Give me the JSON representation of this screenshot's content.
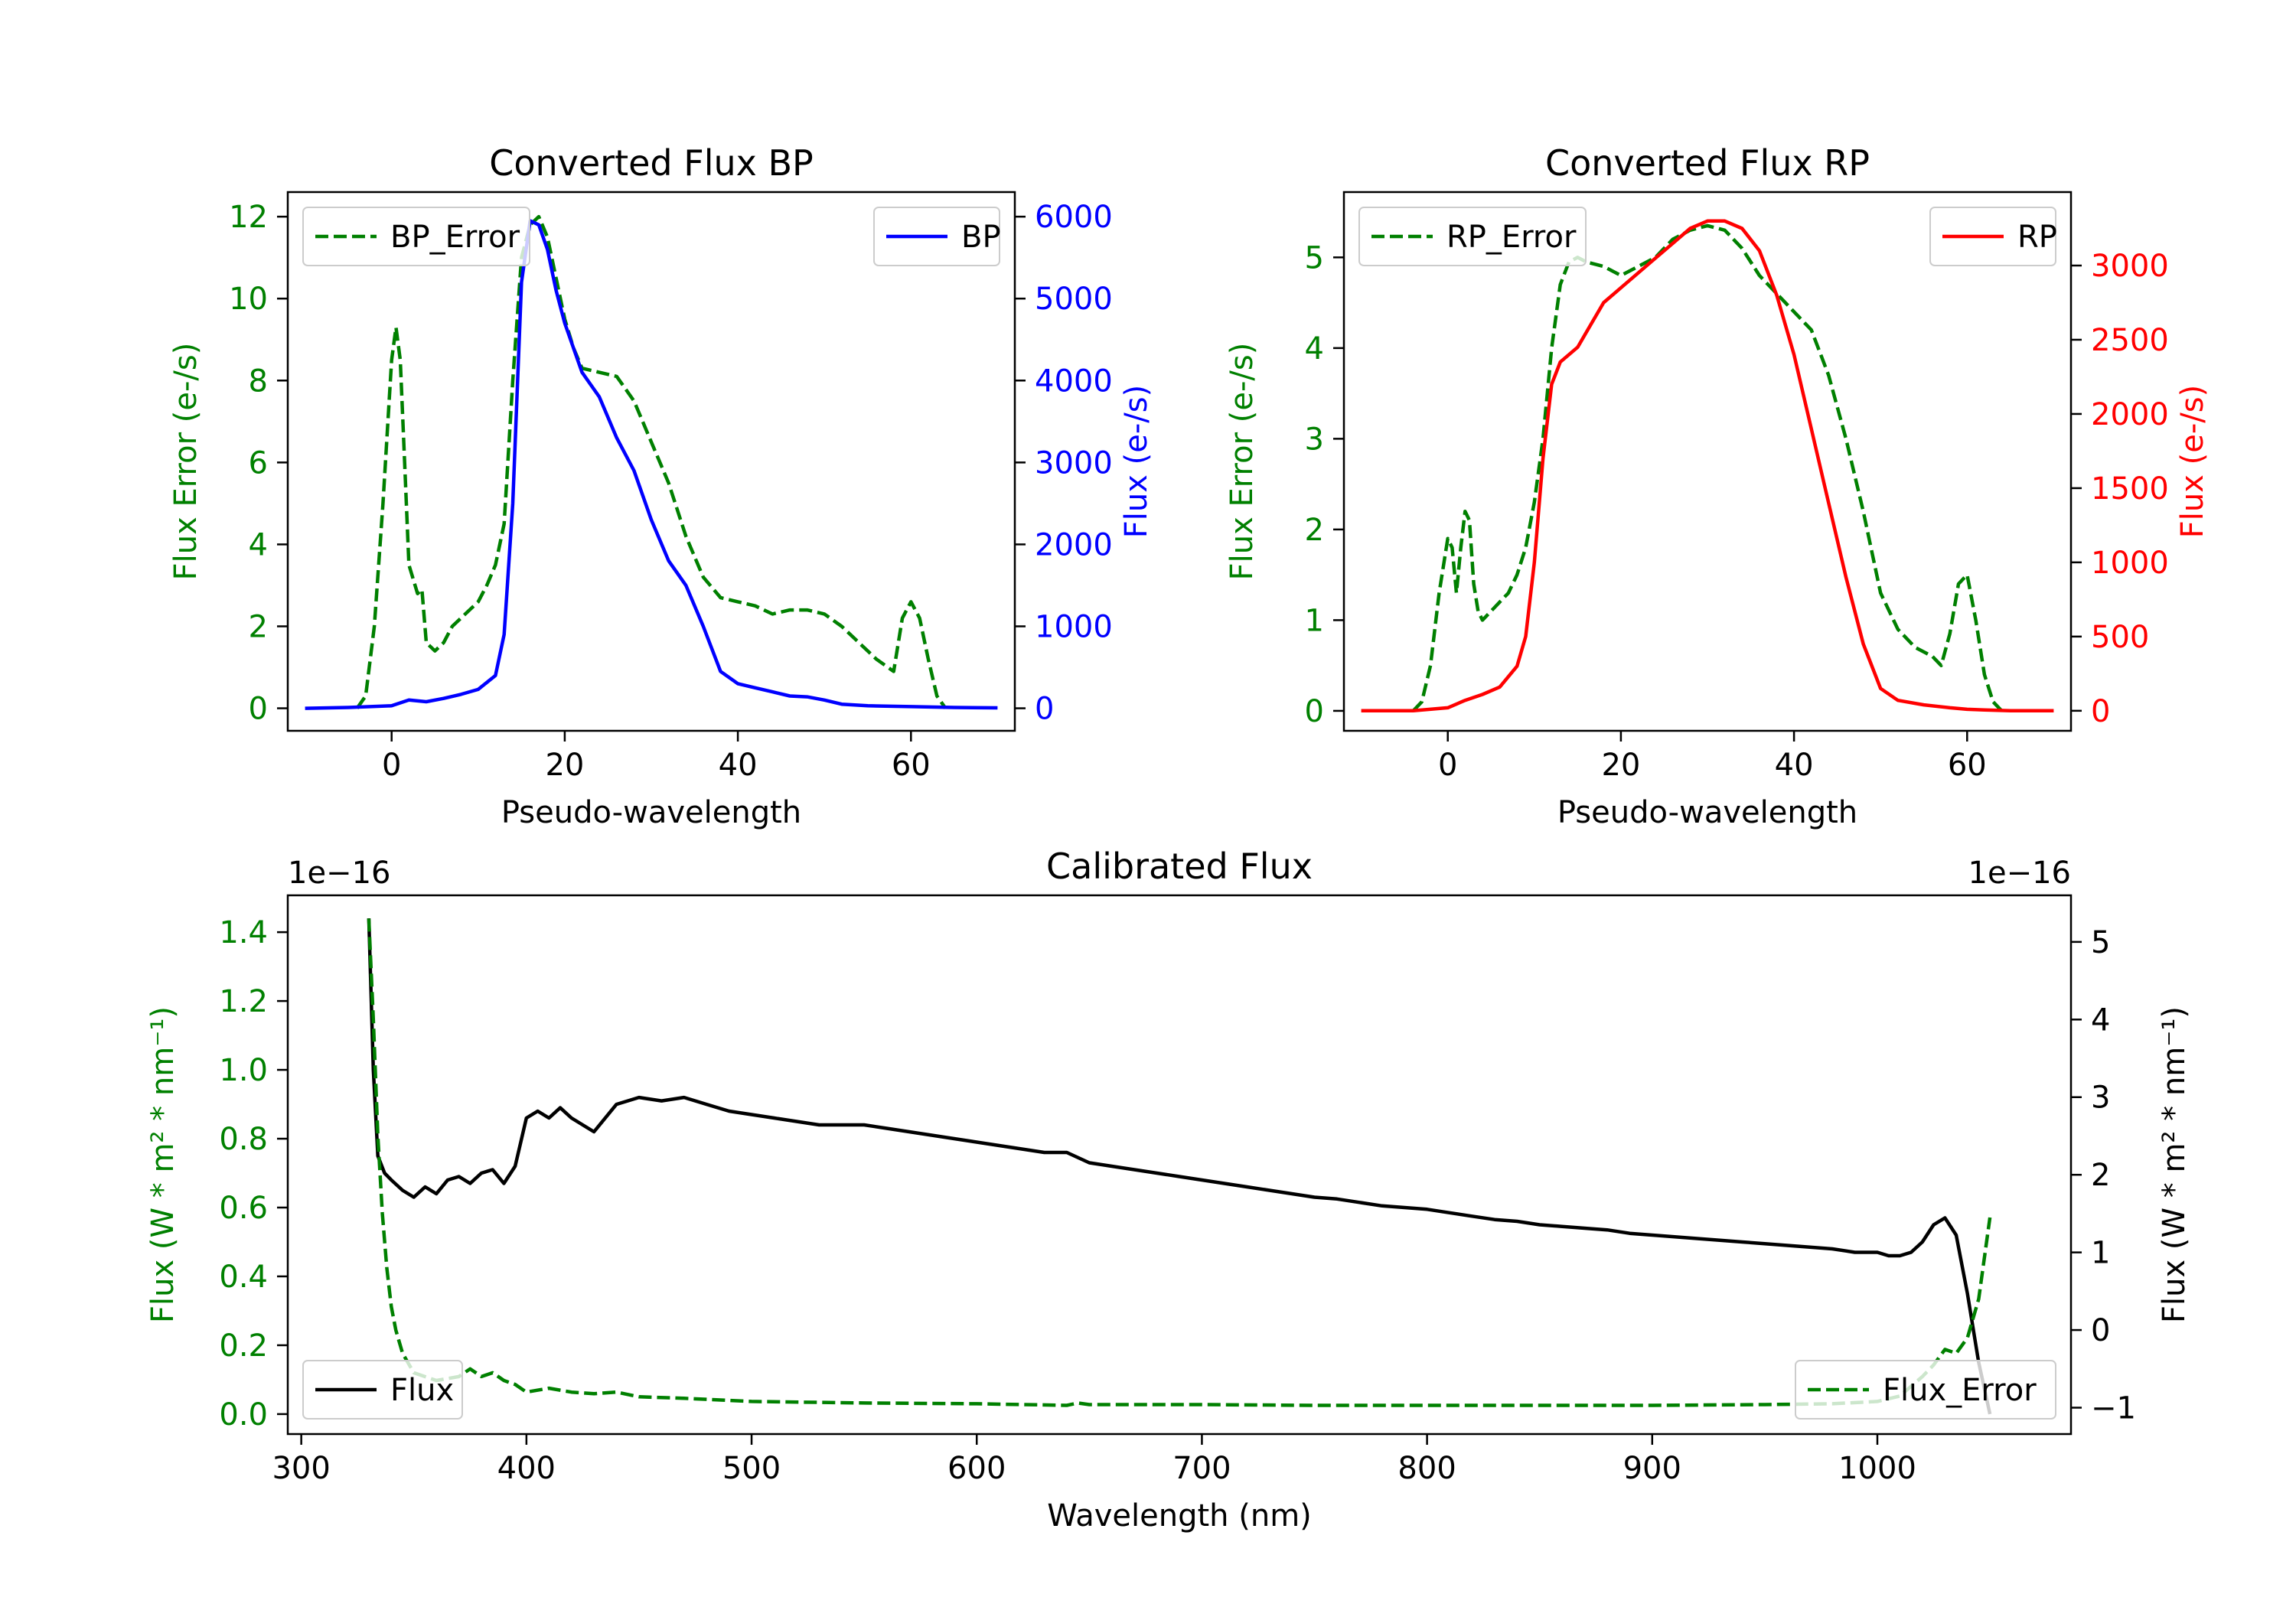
{
  "colors": {
    "error": "#008000",
    "bp": "#0000ff",
    "rp": "#ff0000",
    "flux": "#000000",
    "axis": "#000000"
  },
  "chart_data": [
    {
      "id": "bp",
      "type": "line",
      "title": "Converted Flux BP",
      "xlabel": "Pseudo-wavelength",
      "ylabel_left": "Flux Error (e-/s)",
      "ylabel_right": "Flux (e-/s)",
      "xlim": [
        -12,
        72
      ],
      "ylim_left": [
        -0.55,
        12.6
      ],
      "ylim_right": [
        -275,
        6300
      ],
      "xticks": [
        0,
        20,
        40,
        60
      ],
      "yticks_left": [
        0,
        2,
        4,
        6,
        8,
        10,
        12
      ],
      "yticks_right": [
        0,
        1000,
        2000,
        3000,
        4000,
        5000,
        6000
      ],
      "legend_left": {
        "label": "BP_Error",
        "placement": "upper left"
      },
      "legend_right": {
        "label": "BP",
        "placement": "upper right"
      },
      "series": [
        {
          "name": "BP_Error",
          "axis": "left",
          "style": "dashed",
          "color_key": "error",
          "x": [
            -4,
            -3,
            -2,
            -1,
            0,
            0.5,
            1,
            1.5,
            2,
            3,
            3.5,
            4,
            5,
            6,
            7,
            8,
            9,
            10,
            11,
            12,
            13,
            14,
            15,
            16,
            17,
            18,
            19,
            20,
            21,
            22,
            24,
            26,
            28,
            30,
            32,
            34,
            36,
            38,
            40,
            42,
            44,
            46,
            48,
            50,
            52,
            54,
            56,
            58,
            59,
            60,
            61,
            62,
            63,
            64
          ],
          "values": [
            0,
            0.3,
            2,
            5,
            8.5,
            9.3,
            8.5,
            6,
            3.5,
            2.8,
            2.9,
            1.6,
            1.4,
            1.6,
            2,
            2.2,
            2.4,
            2.6,
            3,
            3.5,
            4.5,
            8,
            11,
            11.8,
            12,
            11.5,
            10.5,
            9.5,
            8.8,
            8.3,
            8.2,
            8.1,
            7.5,
            6.5,
            5.5,
            4.2,
            3.2,
            2.7,
            2.6,
            2.5,
            2.3,
            2.4,
            2.4,
            2.3,
            2,
            1.6,
            1.2,
            0.9,
            2.2,
            2.6,
            2.2,
            1.2,
            0.3,
            0
          ]
        },
        {
          "name": "BP",
          "axis": "right",
          "style": "solid",
          "color_key": "bp",
          "x": [
            -10,
            -5,
            0,
            2,
            4,
            6,
            8,
            10,
            12,
            13,
            14,
            15,
            16,
            17,
            18,
            19,
            20,
            22,
            24,
            26,
            28,
            30,
            32,
            34,
            36,
            38,
            40,
            42,
            44,
            46,
            48,
            50,
            52,
            55,
            60,
            65,
            70
          ],
          "values": [
            0,
            10,
            30,
            100,
            80,
            120,
            170,
            230,
            400,
            900,
            2500,
            5200,
            5950,
            5900,
            5600,
            5100,
            4700,
            4100,
            3800,
            3300,
            2900,
            2300,
            1800,
            1500,
            1000,
            450,
            300,
            250,
            200,
            150,
            140,
            100,
            50,
            30,
            20,
            10,
            5
          ]
        }
      ]
    },
    {
      "id": "rp",
      "type": "line",
      "title": "Converted Flux RP",
      "xlabel": "Pseudo-wavelength",
      "ylabel_left": "Flux Error (e-/s)",
      "ylabel_right": "Flux (e-/s)",
      "xlim": [
        -12,
        72
      ],
      "ylim_left": [
        -0.22,
        5.72
      ],
      "ylim_right": [
        -135,
        3495
      ],
      "xticks": [
        0,
        20,
        40,
        60
      ],
      "yticks_left": [
        0,
        1,
        2,
        3,
        4,
        5
      ],
      "yticks_right": [
        0,
        500,
        1000,
        1500,
        2000,
        2500,
        3000
      ],
      "legend_left": {
        "label": "RP_Error",
        "placement": "upper left"
      },
      "legend_right": {
        "label": "RP",
        "placement": "upper right"
      },
      "series": [
        {
          "name": "RP_Error",
          "axis": "left",
          "style": "dashed",
          "color_key": "error",
          "x": [
            -4,
            -3,
            -2,
            -1,
            0,
            0.5,
            1,
            1.5,
            2,
            2.5,
            3,
            3.5,
            4,
            5,
            6,
            7,
            8,
            9,
            10,
            11,
            12,
            13,
            14,
            15,
            16,
            18,
            20,
            22,
            24,
            26,
            28,
            30,
            32,
            34,
            36,
            38,
            40,
            42,
            44,
            46,
            48,
            50,
            52,
            54,
            56,
            57,
            58,
            59,
            60,
            61,
            62,
            63,
            64
          ],
          "values": [
            0,
            0.1,
            0.5,
            1.3,
            1.9,
            1.8,
            1.3,
            1.8,
            2.2,
            2.1,
            1.4,
            1.1,
            1.0,
            1.1,
            1.2,
            1.3,
            1.5,
            1.8,
            2.3,
            3.0,
            4.0,
            4.7,
            4.95,
            5.0,
            4.95,
            4.9,
            4.8,
            4.9,
            5.0,
            5.2,
            5.3,
            5.35,
            5.3,
            5.1,
            4.8,
            4.6,
            4.4,
            4.2,
            3.7,
            3.0,
            2.2,
            1.3,
            0.9,
            0.7,
            0.6,
            0.5,
            0.85,
            1.4,
            1.5,
            1.0,
            0.4,
            0.1,
            0
          ]
        },
        {
          "name": "RP",
          "axis": "right",
          "style": "solid",
          "color_key": "rp",
          "x": [
            -10,
            -4,
            0,
            2,
            4,
            6,
            8,
            9,
            10,
            11,
            12,
            13,
            14,
            15,
            16,
            18,
            20,
            22,
            24,
            26,
            28,
            30,
            32,
            34,
            36,
            38,
            40,
            42,
            44,
            46,
            48,
            50,
            52,
            55,
            58,
            60,
            62,
            65,
            70
          ],
          "values": [
            0,
            0,
            20,
            70,
            110,
            160,
            300,
            500,
            1000,
            1700,
            2200,
            2350,
            2400,
            2450,
            2550,
            2750,
            2850,
            2950,
            3050,
            3150,
            3250,
            3300,
            3300,
            3250,
            3100,
            2800,
            2400,
            1900,
            1400,
            900,
            450,
            150,
            70,
            40,
            20,
            10,
            5,
            0,
            0
          ]
        }
      ]
    },
    {
      "id": "calibrated",
      "type": "line",
      "title": "Calibrated Flux",
      "xlabel": "Wavelength (nm)",
      "ylabel_left": "Flux (W * m² * nm⁻¹)",
      "ylabel_right": "Flux (W * m² * nm⁻¹)",
      "offset_left": "1e−16",
      "offset_right": "1e−16",
      "xlim": [
        294,
        1086
      ],
      "ylim_left": [
        -0.058,
        1.507
      ],
      "ylim_right": [
        -1.34,
        5.6
      ],
      "xticks": [
        300,
        400,
        500,
        600,
        700,
        800,
        900,
        1000
      ],
      "yticks_left": [
        "0.0",
        "0.2",
        "0.4",
        "0.6",
        "0.8",
        "1.0",
        "1.2",
        "1.4"
      ],
      "yticks_right": [
        -1,
        0,
        1,
        2,
        3,
        4,
        5
      ],
      "legend_left": {
        "label": "Flux",
        "placement": "lower left"
      },
      "legend_right": {
        "label": "Flux_Error",
        "placement": "lower right"
      },
      "series": [
        {
          "name": "Flux",
          "axis": "left",
          "style": "solid",
          "color_key": "flux",
          "x": [
            330,
            332,
            334,
            337,
            340,
            345,
            350,
            355,
            360,
            365,
            370,
            375,
            380,
            385,
            390,
            395,
            400,
            405,
            410,
            415,
            420,
            425,
            430,
            440,
            450,
            460,
            470,
            480,
            490,
            500,
            510,
            520,
            530,
            540,
            550,
            560,
            570,
            580,
            590,
            600,
            610,
            620,
            630,
            640,
            650,
            660,
            670,
            680,
            690,
            700,
            710,
            720,
            730,
            740,
            750,
            760,
            770,
            780,
            790,
            800,
            810,
            820,
            830,
            840,
            850,
            860,
            870,
            880,
            890,
            900,
            910,
            920,
            930,
            940,
            950,
            960,
            970,
            980,
            990,
            1000,
            1005,
            1010,
            1015,
            1020,
            1025,
            1030,
            1035,
            1040,
            1045,
            1050
          ],
          "values": [
            1.44,
            1.0,
            0.75,
            0.7,
            0.68,
            0.65,
            0.63,
            0.66,
            0.64,
            0.68,
            0.69,
            0.67,
            0.7,
            0.71,
            0.67,
            0.72,
            0.86,
            0.88,
            0.86,
            0.89,
            0.86,
            0.84,
            0.82,
            0.9,
            0.92,
            0.91,
            0.92,
            0.9,
            0.88,
            0.87,
            0.86,
            0.85,
            0.84,
            0.84,
            0.84,
            0.83,
            0.82,
            0.81,
            0.8,
            0.79,
            0.78,
            0.77,
            0.76,
            0.76,
            0.73,
            0.72,
            0.71,
            0.7,
            0.69,
            0.68,
            0.67,
            0.66,
            0.65,
            0.64,
            0.63,
            0.625,
            0.615,
            0.605,
            0.6,
            0.595,
            0.585,
            0.575,
            0.565,
            0.56,
            0.55,
            0.545,
            0.54,
            0.535,
            0.525,
            0.52,
            0.515,
            0.51,
            0.505,
            0.5,
            0.495,
            0.49,
            0.485,
            0.48,
            0.47,
            0.47,
            0.46,
            0.46,
            0.47,
            0.5,
            0.55,
            0.57,
            0.52,
            0.35,
            0.15,
            0.0
          ]
        },
        {
          "name": "Flux_Error",
          "axis": "right",
          "style": "dashed",
          "color_key": "error",
          "x": [
            330,
            332,
            334,
            336,
            338,
            340,
            342,
            345,
            350,
            360,
            370,
            375,
            380,
            385,
            390,
            395,
            400,
            410,
            420,
            430,
            440,
            450,
            470,
            500,
            550,
            600,
            640,
            645,
            650,
            700,
            750,
            800,
            850,
            900,
            950,
            980,
            1000,
            1010,
            1020,
            1025,
            1030,
            1035,
            1040,
            1045,
            1050
          ],
          "values": [
            5.3,
            4.0,
            2.5,
            1.5,
            0.8,
            0.3,
            0.0,
            -0.3,
            -0.55,
            -0.65,
            -0.6,
            -0.5,
            -0.6,
            -0.55,
            -0.65,
            -0.7,
            -0.8,
            -0.75,
            -0.8,
            -0.82,
            -0.8,
            -0.86,
            -0.88,
            -0.92,
            -0.94,
            -0.95,
            -0.97,
            -0.94,
            -0.96,
            -0.96,
            -0.97,
            -0.97,
            -0.97,
            -0.97,
            -0.96,
            -0.95,
            -0.92,
            -0.85,
            -0.6,
            -0.45,
            -0.25,
            -0.3,
            -0.1,
            0.4,
            1.45
          ]
        }
      ]
    }
  ]
}
